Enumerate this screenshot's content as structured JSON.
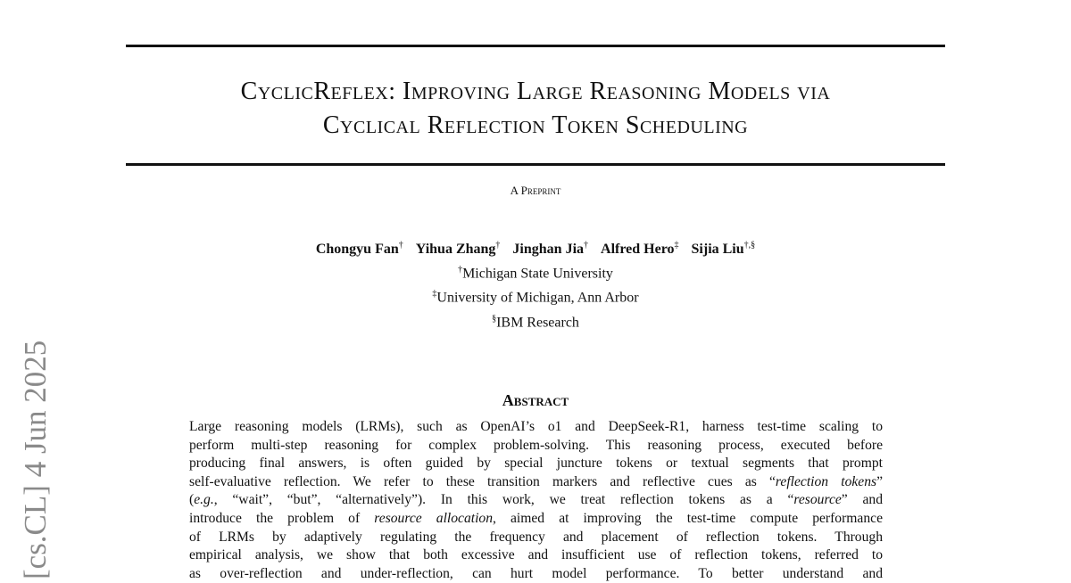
{
  "title": {
    "line1": "CyclicReflex: Improving Large Reasoning Models via",
    "line2": "Cyclical Reflection Token Scheduling"
  },
  "label": "A Preprint",
  "authors": [
    {
      "name": "Chongyu Fan",
      "mark": "†"
    },
    {
      "name": "Yihua Zhang",
      "mark": "†"
    },
    {
      "name": "Jinghan Jia",
      "mark": "†"
    },
    {
      "name": "Alfred Hero",
      "mark": "‡"
    },
    {
      "name": "Sijia Liu",
      "mark": "†,§"
    }
  ],
  "affiliations": [
    {
      "mark": "†",
      "name": "Michigan State University"
    },
    {
      "mark": "‡",
      "name": "University of Michigan, Ann Arbor"
    },
    {
      "mark": "§",
      "name": "IBM Research"
    }
  ],
  "abstract_heading": "Abstract",
  "abstract_lines": [
    "Large reasoning models (LRMs), such as OpenAI’s o1 and DeepSeek-R1, harness test-time scaling to",
    "perform multi-step reasoning for complex problem-solving. This reasoning process, executed before",
    "producing final answers, is often guided by special juncture tokens or textual segments that prompt",
    "self-evaluative reflection. We refer to these transition markers and reflective cues as “<i>reflection tokens</i>”",
    "(<i>e.g.</i>, “wait”, “but”, “alternatively”).  In this work, we treat reflection tokens as a “<i>resource</i>” and",
    "introduce the problem of <i>resource allocation</i>, aimed at improving the test-time compute performance",
    "of LRMs by adaptively regulating the frequency and placement of reflection tokens.  Through",
    "empirical analysis, we show that both excessive and insufficient use of reflection tokens, referred to",
    "as over-reflection and under-reflection, can hurt model performance. To better understand and"
  ],
  "arxiv_stamp": "[cs.CL]  4 Jun 2025"
}
